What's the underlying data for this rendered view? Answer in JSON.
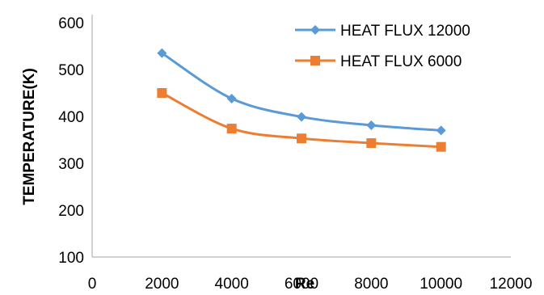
{
  "chart_data": {
    "type": "line",
    "title": "",
    "xlabel": "Re",
    "ylabel": "TEMPERATURE(K)",
    "xlim": [
      0,
      12000
    ],
    "ylim": [
      100,
      600
    ],
    "xticks": [
      0,
      2000,
      4000,
      6000,
      8000,
      10000,
      12000
    ],
    "yticks": [
      100,
      200,
      300,
      400,
      500,
      600
    ],
    "grid": false,
    "smooth": true,
    "legend": "top-right",
    "series": [
      {
        "name": "HEAT FLUX 12000",
        "color": "#5B9BD5",
        "marker": "diamond",
        "x": [
          2000,
          4000,
          6000,
          8000,
          10000
        ],
        "y": [
          535,
          438,
          399,
          381,
          370
        ]
      },
      {
        "name": "HEAT FLUX 6000",
        "color": "#ED7D31",
        "marker": "square",
        "x": [
          2000,
          4000,
          6000,
          8000,
          10000
        ],
        "y": [
          450,
          374,
          353,
          343,
          335
        ]
      }
    ]
  }
}
